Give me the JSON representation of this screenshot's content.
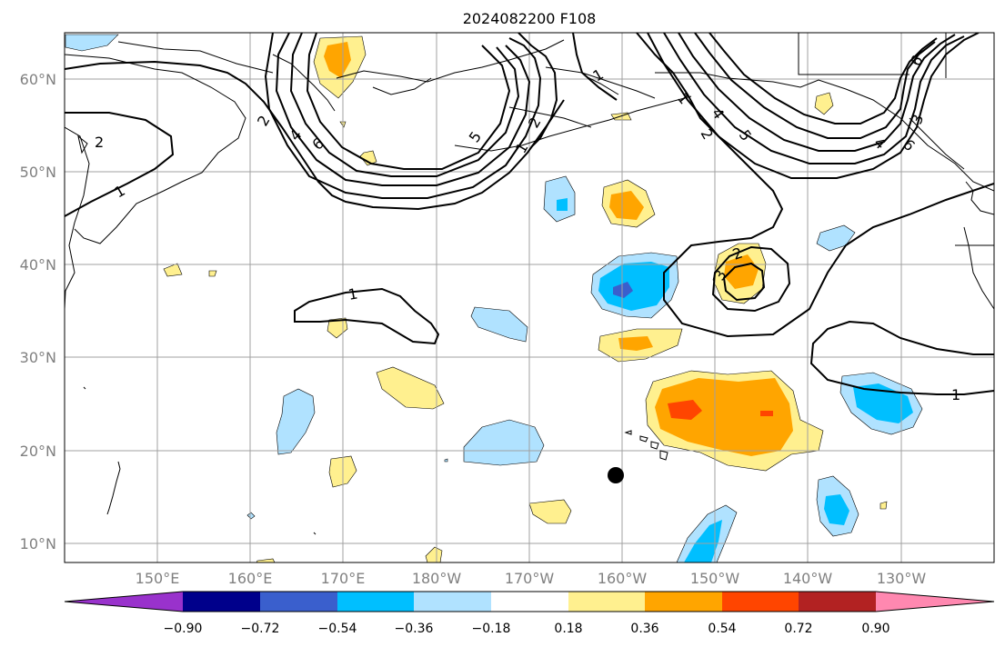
{
  "title": "2024082200 F108",
  "map": {
    "lat_labels": [
      "60°N",
      "50°N",
      "40°N",
      "30°N",
      "20°N",
      "10°N"
    ],
    "lon_labels": [
      "150°E",
      "160°E",
      "170°E",
      "180°W",
      "170°W",
      "160°W",
      "150°W",
      "140°W",
      "130°W"
    ]
  },
  "colorbar": {
    "tick_labels": [
      "−0.90",
      "−0.72",
      "−0.54",
      "−0.36",
      "−0.18",
      "0.18",
      "0.36",
      "0.54",
      "0.72",
      "0.90"
    ],
    "colors": {
      "under": "#9932cc",
      "bins": [
        "#00008b",
        "#3a5fcd",
        "#00bfff",
        "#b0e2ff",
        "#ffffff",
        "#fff08f",
        "#ffa500",
        "#ff4500",
        "#b22222"
      ],
      "over": "#ff88b0"
    }
  },
  "contour_labels": [
    "1",
    "2",
    "1",
    "2",
    "4",
    "6",
    "5",
    "1",
    "2",
    "1",
    "2",
    "4",
    "5",
    "6",
    "3",
    "6",
    "4",
    "1",
    "2",
    "3",
    "1"
  ],
  "marker": "storm-position-dot"
}
